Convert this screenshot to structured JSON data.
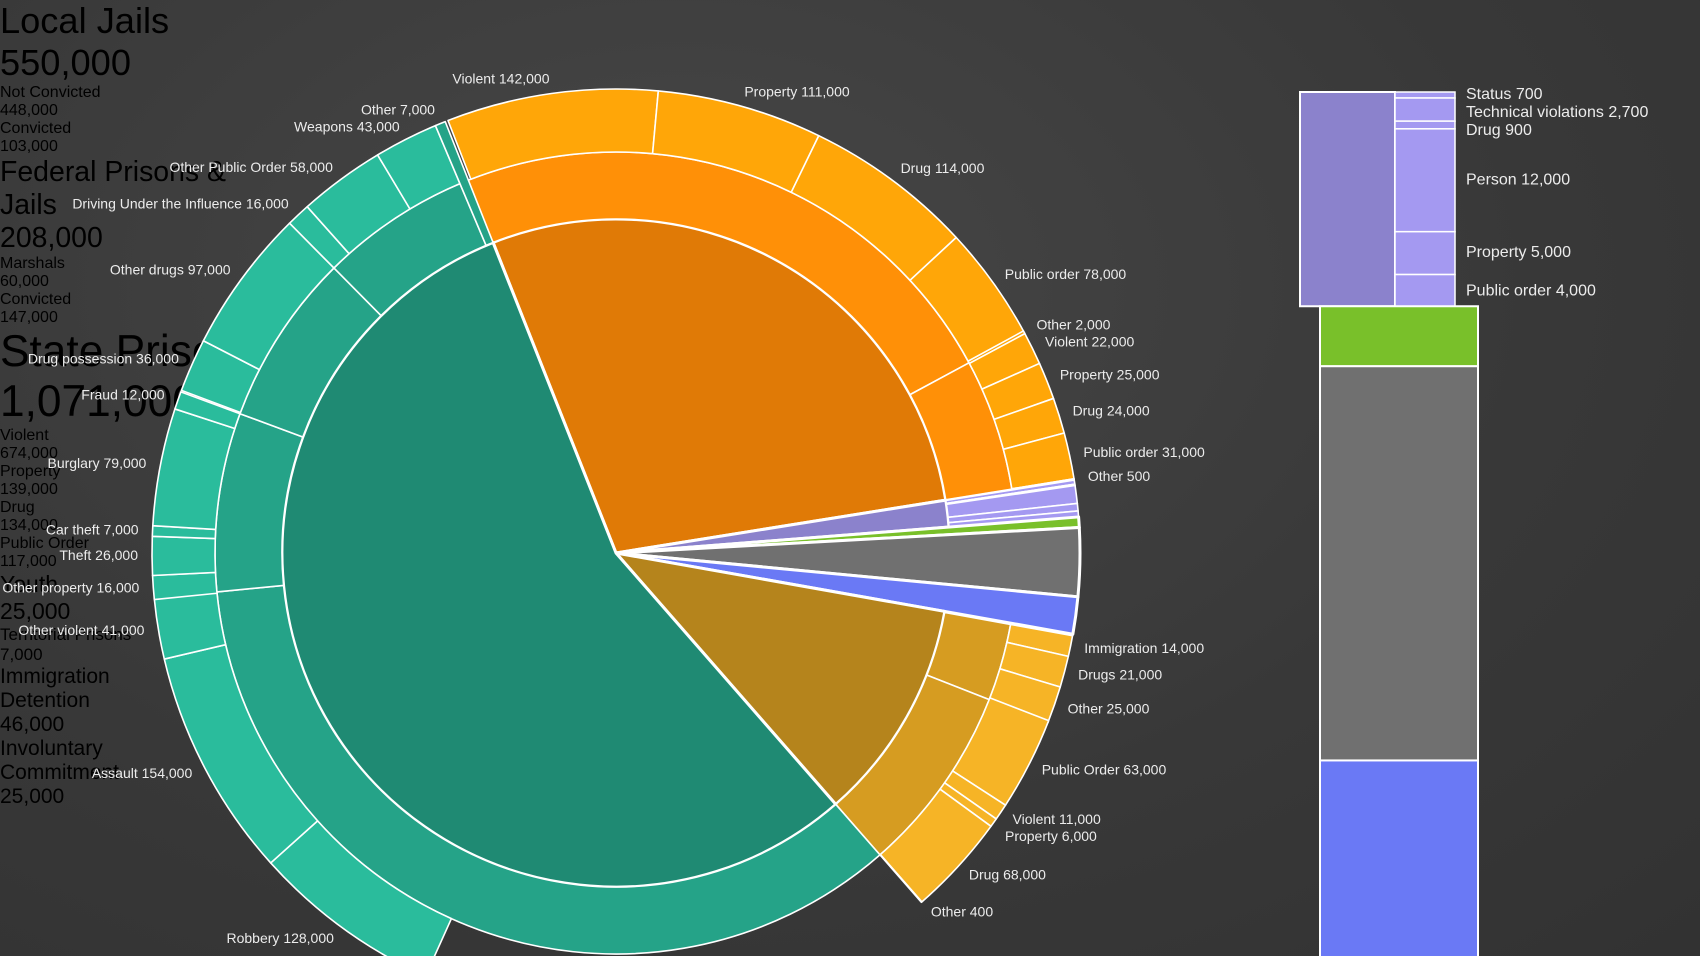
{
  "chart_data": {
    "type": "sunburst",
    "nodes": [
      {
        "name": "Local Jails",
        "value": 550000,
        "value_label": "550,000",
        "color": "#e07a06",
        "children": [
          {
            "name": "Not Convicted",
            "value": 448000,
            "value_label": "448,000",
            "children": [
              {
                "name": "Violent",
                "value": 142000,
                "value_label": "142,000"
              },
              {
                "name": "Property",
                "value": 111000,
                "value_label": "111,000"
              },
              {
                "name": "Drug",
                "value": 114000,
                "value_label": "114,000"
              },
              {
                "name": "Public order",
                "value": 78000,
                "value_label": "78,000"
              }
            ]
          },
          {
            "name": "Convicted",
            "value": 103000,
            "value_label": "103,000",
            "children": [
              {
                "name": "Other",
                "value": 2000,
                "value_label": "2,000"
              },
              {
                "name": "Violent",
                "value": 22000,
                "value_label": "22,000"
              },
              {
                "name": "Property",
                "value": 25000,
                "value_label": "25,000"
              },
              {
                "name": "Drug",
                "value": 24000,
                "value_label": "24,000"
              },
              {
                "name": "Public order",
                "value": 31000,
                "value_label": "31,000"
              },
              {
                "name": "Other",
                "value": 500,
                "value_label": "500"
              }
            ]
          }
        ]
      },
      {
        "name": "Youth",
        "value": 25000,
        "value_label": "25,000",
        "color": "#8b82cc",
        "children": [
          {
            "name": "Status",
            "value": 700,
            "value_label": "700"
          },
          {
            "name": "Technical violations",
            "value": 2700,
            "value_label": "2,700"
          },
          {
            "name": "Drug",
            "value": 900,
            "value_label": "900"
          },
          {
            "name": "Person",
            "value": 12000,
            "value_label": "12,000"
          },
          {
            "name": "Property",
            "value": 5000,
            "value_label": "5,000"
          },
          {
            "name": "Public order",
            "value": 4000,
            "value_label": "4,000"
          }
        ]
      },
      {
        "name": "Territorial Prisons",
        "value": 7000,
        "value_label": "7,000",
        "color": "#79c02a"
      },
      {
        "name": "Immigration Detention",
        "value": 46000,
        "value_label": "46,000",
        "color": "#707070"
      },
      {
        "name": "Involuntary Commitment",
        "value": 25000,
        "value_label": "25,000",
        "color": "#6a79f5"
      },
      {
        "name": "Federal Prisons & Jails",
        "value": 208000,
        "value_label": "208,000",
        "color": "#b5841c",
        "children": [
          {
            "name": "Marshals",
            "value": 60000,
            "value_label": "60,000",
            "children": [
              {
                "name": "Immigration",
                "value": 14000,
                "value_label": "14,000"
              },
              {
                "name": "Drugs",
                "value": 21000,
                "value_label": "21,000"
              },
              {
                "name": "Other",
                "value": 25000,
                "value_label": "25,000"
              }
            ]
          },
          {
            "name": "Convicted",
            "value": 147000,
            "value_label": "147,000",
            "children": [
              {
                "name": "Public Order",
                "value": 63000,
                "value_label": "63,000"
              },
              {
                "name": "Violent",
                "value": 11000,
                "value_label": "11,000"
              },
              {
                "name": "Property",
                "value": 6000,
                "value_label": "6,000"
              },
              {
                "name": "Drug",
                "value": 68000,
                "value_label": "68,000"
              },
              {
                "name": "Other",
                "value": 400,
                "value_label": "400"
              }
            ]
          }
        ]
      },
      {
        "name": "State Prisons",
        "value": 1071000,
        "value_label": "1,071,000",
        "color": "#1f8a73",
        "children": [
          {
            "name": "Violent",
            "value": 674000,
            "value_label": "674,000",
            "children": [
              {
                "name": "Robbery",
                "value": 128000,
                "value_label": "128,000"
              },
              {
                "name": "Assault",
                "value": 154000,
                "value_label": "154,000"
              },
              {
                "name": "Other violent",
                "value": 41000,
                "value_label": "41,000"
              }
            ]
          },
          {
            "name": "Property",
            "value": 139000,
            "value_label": "139,000",
            "children": [
              {
                "name": "Other property",
                "value": 16000,
                "value_label": "16,000"
              },
              {
                "name": "Theft",
                "value": 26000,
                "value_label": "26,000"
              },
              {
                "name": "Car theft",
                "value": 7000,
                "value_label": "7,000"
              },
              {
                "name": "Burglary",
                "value": 79000,
                "value_label": "79,000"
              },
              {
                "name": "Fraud",
                "value": 12000,
                "value_label": "12,000"
              }
            ]
          },
          {
            "name": "Drug",
            "value": 134000,
            "value_label": "134,000",
            "children": [
              {
                "name": "Drug possession",
                "value": 36000,
                "value_label": "36,000"
              },
              {
                "name": "Other drugs",
                "value": 97000,
                "value_label": "97,000"
              }
            ]
          },
          {
            "name": "Public Order",
            "value": 117000,
            "value_label": "117,000",
            "children": [
              {
                "name": "Driving Under the Influence",
                "value": 16000,
                "value_label": "16,000"
              },
              {
                "name": "Other Public Order",
                "value": 58000,
                "value_label": "58,000"
              },
              {
                "name": "Weapons",
                "value": 43000,
                "value_label": "43,000"
              }
            ]
          },
          {
            "name": "Other",
            "value": 7000,
            "value_label": "7,000"
          }
        ]
      }
    ]
  }
}
